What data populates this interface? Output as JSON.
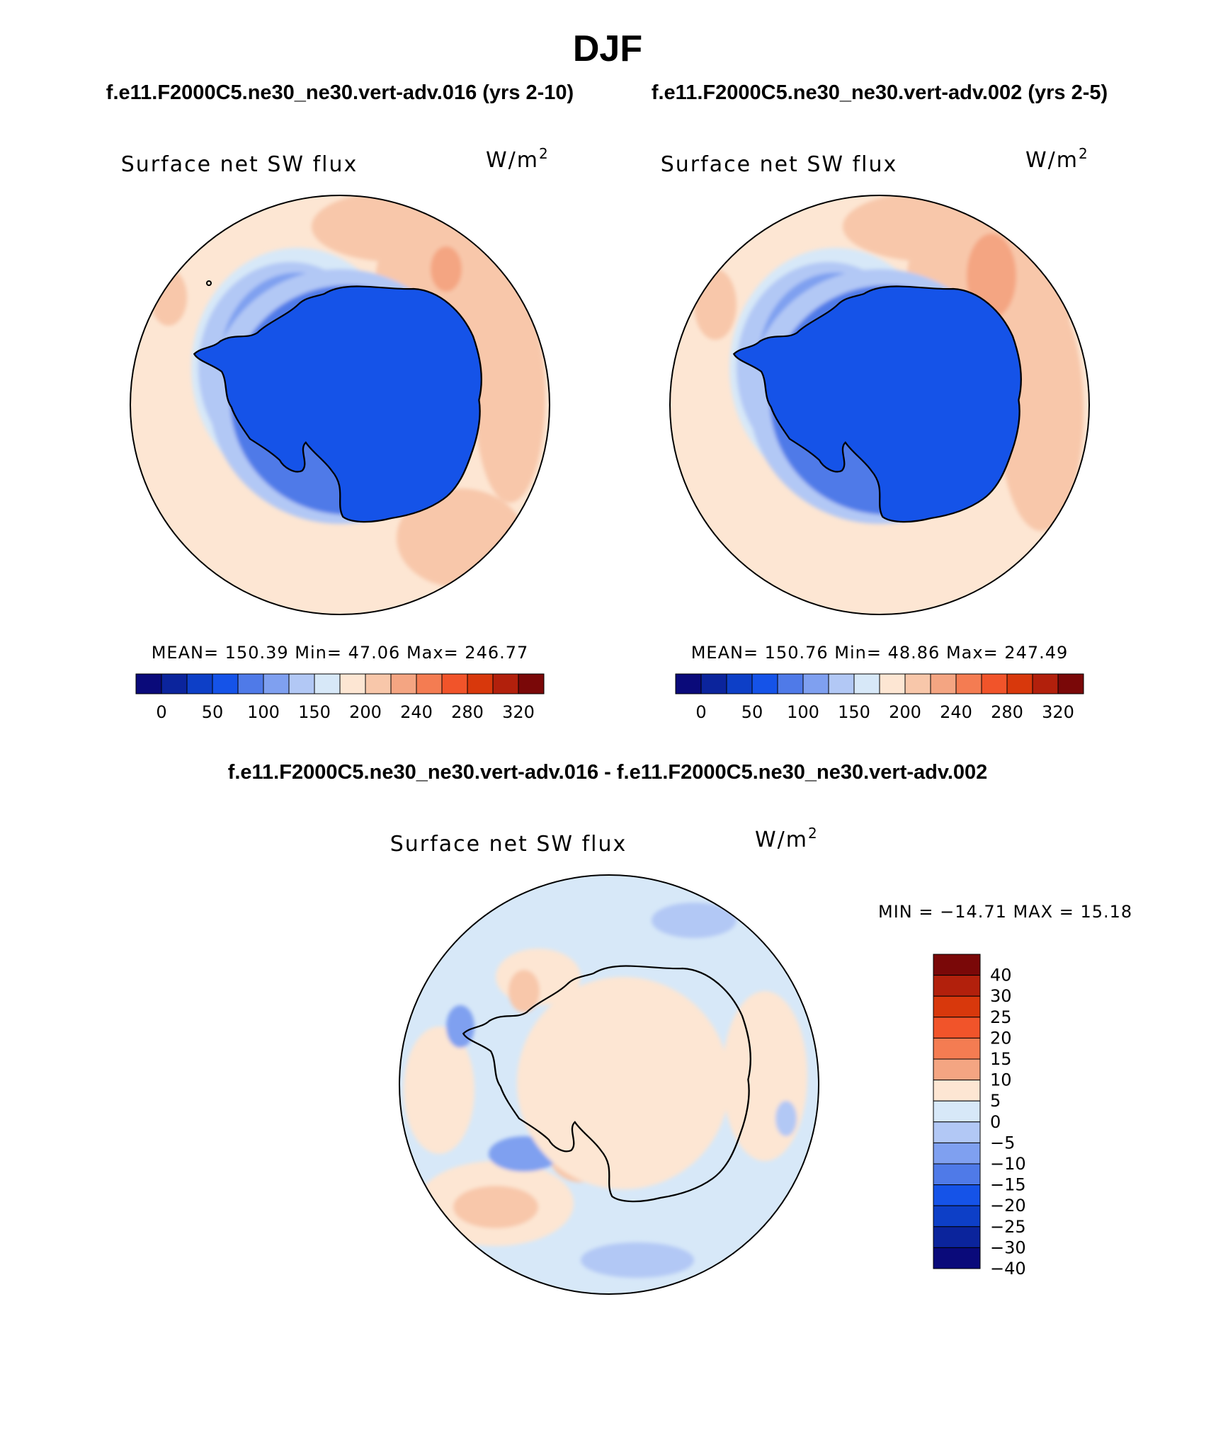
{
  "figure": {
    "title": "DJF",
    "case_a_title": "f.e11.F2000C5.ne30_ne30.vert-adv.016 (yrs 2-10)",
    "case_b_title": "f.e11.F2000C5.ne30_ne30.vert-adv.002 (yrs 2-5)",
    "diff_title": "f.e11.F2000C5.ne30_ne30.vert-adv.016 - f.e11.F2000C5.ne30_ne30.vert-adv.002"
  },
  "panels": [
    {
      "variable": "Surface net SW flux",
      "units_base": "W/m",
      "units_exp": "2",
      "stats": "MEAN= 150.39   Min=   47.06   Max= 246.77"
    },
    {
      "variable": "Surface net SW flux",
      "units_base": "W/m",
      "units_exp": "2",
      "stats": "MEAN= 150.76   Min=   48.86   Max= 247.49"
    },
    {
      "variable": "Surface net SW flux",
      "units_base": "W/m",
      "units_exp": "2",
      "stats": "MIN = −14.71  MAX =   15.18"
    }
  ],
  "colorbar_abs": {
    "colors": [
      "#0a0a7a",
      "#0b249c",
      "#0d3fc7",
      "#1553e8",
      "#4f7ae8",
      "#7fa0f0",
      "#b2c8f5",
      "#d7e8f8",
      "#fde6d3",
      "#f8c7aa",
      "#f4a582",
      "#f47c52",
      "#f1542a",
      "#d8380c",
      "#b2200c",
      "#7a0808"
    ],
    "labels": [
      "0",
      "50",
      "100",
      "150",
      "200",
      "240",
      "280",
      "320"
    ]
  },
  "colorbar_diff": {
    "colors": [
      "#7a0808",
      "#b2200c",
      "#d8380c",
      "#f1542a",
      "#f47c52",
      "#f4a582",
      "#fde6d3",
      "#d7e8f8",
      "#b2c8f5",
      "#7fa0f0",
      "#4f7ae8",
      "#1553e8",
      "#0d3fc7",
      "#0b249c",
      "#0a0a7a"
    ],
    "labels": [
      "40",
      "30",
      "25",
      "20",
      "15",
      "10",
      "5",
      "0",
      "−5",
      "−10",
      "−15",
      "−20",
      "−25",
      "−30",
      "−40"
    ]
  }
}
